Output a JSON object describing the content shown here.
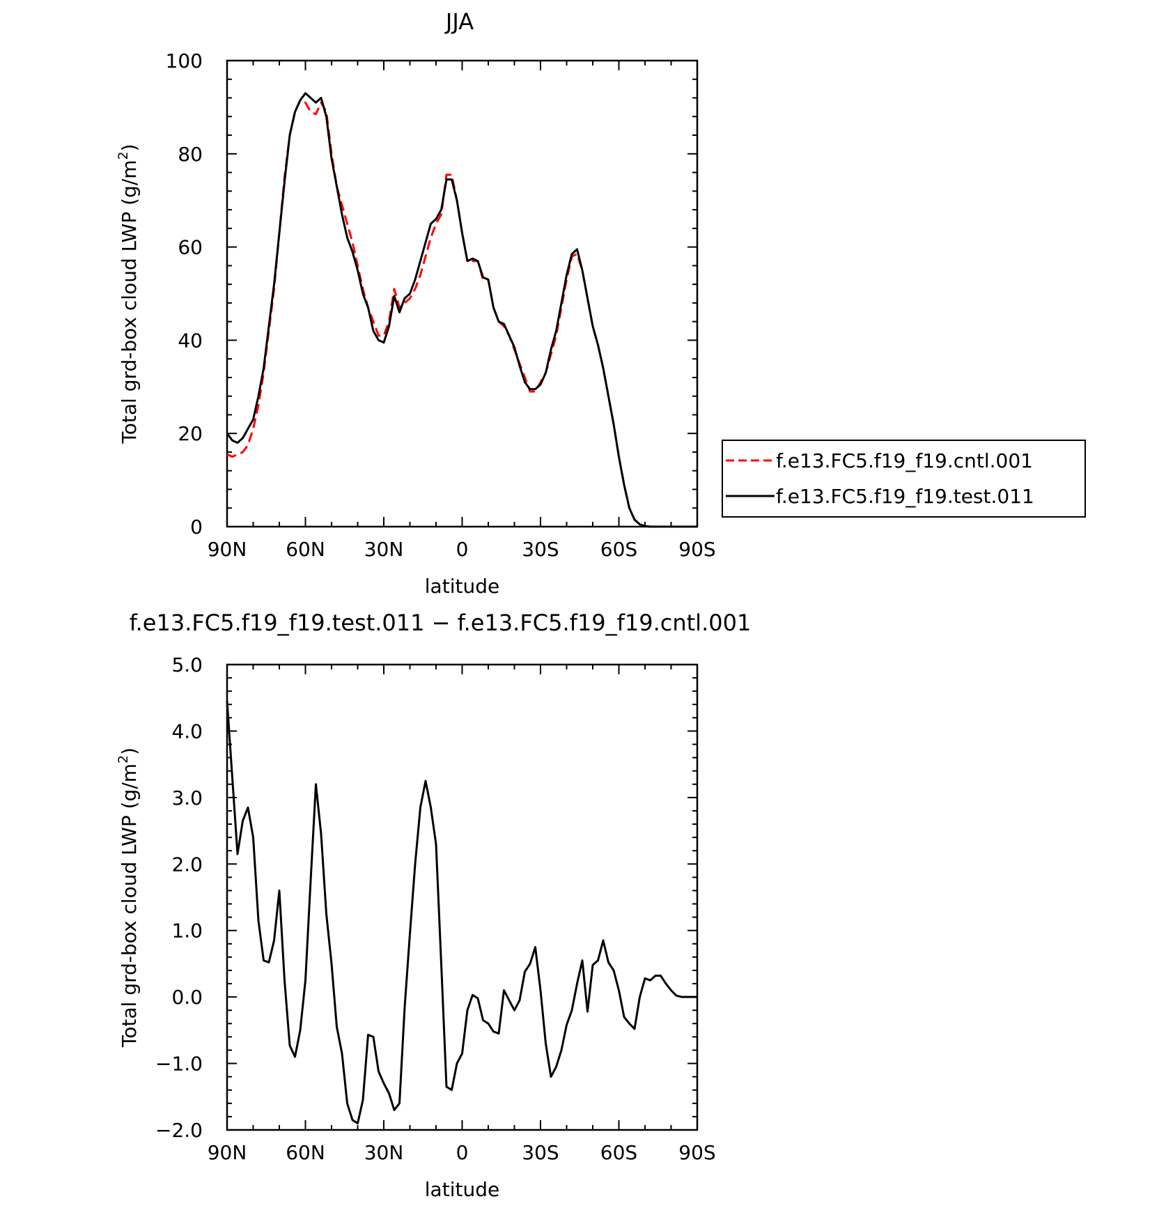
{
  "chart_data": [
    {
      "type": "line",
      "title": "JJA",
      "xlabel": "latitude",
      "ylabel": "Total grd-box cloud LWP (g/m2)",
      "ylabel_main": "Total grd-box cloud LWP (g/m",
      "ylabel_sup": "2",
      "ylabel_end": ")",
      "x_tick_labels": [
        "90N",
        "60N",
        "30N",
        "0",
        "30S",
        "60S",
        "90S"
      ],
      "x_ticks": [
        -90,
        -60,
        -30,
        0,
        30,
        60,
        90
      ],
      "xlim": [
        -90,
        90
      ],
      "ylim": [
        0,
        100
      ],
      "y_ticks": [
        0,
        20,
        40,
        60,
        80,
        100
      ],
      "y_tick_labels": [
        "0",
        "20",
        "40",
        "60",
        "80",
        "100"
      ],
      "legend": "right",
      "series": [
        {
          "name": "f.e13.FC5.f19_f19.cntl.001",
          "color": "#ff0000",
          "dash": "dashed",
          "x": [
            -90,
            -88,
            -86,
            -84,
            -82,
            -80,
            -78,
            -76,
            -74,
            -72,
            -70,
            -68,
            -66,
            -64,
            -62,
            -60,
            -58,
            -56,
            -54,
            -52,
            -50,
            -48,
            -46,
            -44,
            -42,
            -40,
            -38,
            -36,
            -34,
            -32,
            -30,
            -28,
            -26,
            -24,
            -22,
            -20,
            -18,
            -16,
            -14,
            -12,
            -10,
            -8,
            -6,
            -4,
            -2,
            0,
            2,
            4,
            6,
            8,
            10,
            12,
            14,
            16,
            18,
            20,
            22,
            24,
            26,
            28,
            30,
            32,
            34,
            36,
            38,
            40,
            42,
            44,
            46,
            48,
            50,
            52,
            54,
            56,
            58,
            60,
            62,
            64,
            66,
            68,
            70,
            72,
            74,
            76,
            78,
            80,
            82,
            84,
            86,
            88,
            90
          ],
          "values": [
            15.5,
            15,
            15.5,
            16,
            17.5,
            21,
            26,
            33,
            42,
            51,
            63,
            75,
            84,
            89,
            91.5,
            91,
            89,
            88.5,
            91,
            89,
            80,
            73,
            69,
            65,
            61,
            56,
            51,
            47,
            44,
            41,
            41,
            44,
            51,
            47,
            48,
            49,
            51,
            54,
            58,
            62,
            65,
            67,
            75.5,
            75.5,
            70,
            63,
            57,
            57,
            57,
            53,
            53,
            47,
            44,
            43,
            41,
            38,
            35,
            32,
            29,
            29,
            31,
            33,
            37,
            41,
            47,
            53,
            58,
            58.5,
            55,
            49,
            43,
            39,
            34,
            28,
            22,
            15,
            9,
            4,
            1.5,
            0.5,
            0.1,
            0,
            0,
            0,
            0,
            0,
            0,
            0,
            0,
            0,
            0
          ]
        },
        {
          "name": "f.e13.FC5.f19_f19.test.011",
          "color": "#000000",
          "dash": "solid",
          "x": [
            -90,
            -88,
            -86,
            -84,
            -82,
            -80,
            -78,
            -76,
            -74,
            -72,
            -70,
            -68,
            -66,
            -64,
            -62,
            -60,
            -58,
            -56,
            -54,
            -52,
            -50,
            -48,
            -46,
            -44,
            -42,
            -40,
            -38,
            -36,
            -34,
            -32,
            -30,
            -28,
            -26,
            -24,
            -22,
            -20,
            -18,
            -16,
            -14,
            -12,
            -10,
            -8,
            -6,
            -4,
            -2,
            0,
            2,
            4,
            6,
            8,
            10,
            12,
            14,
            16,
            18,
            20,
            22,
            24,
            26,
            28,
            30,
            32,
            34,
            36,
            38,
            40,
            42,
            44,
            46,
            48,
            50,
            52,
            54,
            56,
            58,
            60,
            62,
            64,
            66,
            68,
            70,
            72,
            74,
            76,
            78,
            80,
            82,
            84,
            86,
            88,
            90
          ],
          "values": [
            20,
            18.5,
            18,
            19,
            21,
            23,
            28,
            34,
            43,
            52,
            63,
            74,
            84,
            89,
            91.5,
            93,
            92,
            91,
            92,
            88,
            79,
            73,
            67,
            62,
            59,
            55,
            50,
            47,
            42,
            40,
            39.5,
            43,
            49.5,
            46,
            49,
            50,
            53,
            57,
            61,
            65,
            66,
            68,
            74.5,
            74.5,
            70,
            63,
            57,
            57.5,
            57,
            53.5,
            53,
            47,
            44,
            43.5,
            41,
            38.5,
            34.5,
            31,
            29.5,
            29.5,
            30.5,
            33,
            38,
            42,
            48,
            54,
            58.5,
            59.5,
            55,
            49,
            43,
            39,
            34,
            28,
            22,
            15,
            9,
            4,
            1.5,
            0.5,
            0.1,
            0,
            0,
            0,
            0,
            0,
            0,
            0,
            0,
            0,
            0
          ]
        }
      ]
    },
    {
      "type": "line",
      "title": "f.e13.FC5.f19_f19.test.011 − f.e13.FC5.f19_f19.cntl.001",
      "xlabel": "latitude",
      "ylabel": "Total grd-box cloud LWP (g/m2)",
      "ylabel_main": "Total grd-box cloud LWP (g/m",
      "ylabel_sup": "2",
      "ylabel_end": ")",
      "x_tick_labels": [
        "90N",
        "60N",
        "30N",
        "0",
        "30S",
        "60S",
        "90S"
      ],
      "x_ticks": [
        -90,
        -60,
        -30,
        0,
        30,
        60,
        90
      ],
      "xlim": [
        -90,
        90
      ],
      "ylim": [
        -2.0,
        5.0
      ],
      "y_ticks": [
        -2,
        -1,
        0,
        1,
        2,
        3,
        4,
        5
      ],
      "y_tick_labels": [
        "−2.0",
        "−1.0",
        "0.0",
        "1.0",
        "2.0",
        "3.0",
        "4.0",
        "5.0"
      ],
      "series": [
        {
          "name": "",
          "color": "#000000",
          "dash": "solid",
          "x": [
            -90,
            -88,
            -86,
            -84,
            -82,
            -80,
            -78,
            -76,
            -74,
            -72,
            -70,
            -68,
            -66,
            -64,
            -62,
            -60,
            -58,
            -56,
            -54,
            -52,
            -50,
            -48,
            -46,
            -44,
            -42,
            -40,
            -38,
            -36,
            -34,
            -32,
            -30,
            -28,
            -26,
            -24,
            -22,
            -20,
            -18,
            -16,
            -14,
            -12,
            -10,
            -8,
            -6,
            -4,
            -2,
            0,
            2,
            4,
            6,
            8,
            10,
            12,
            14,
            16,
            18,
            20,
            22,
            24,
            26,
            28,
            30,
            32,
            34,
            36,
            38,
            40,
            42,
            44,
            46,
            48,
            50,
            52,
            54,
            56,
            58,
            60,
            62,
            64,
            66,
            68,
            70,
            72,
            74,
            76,
            78,
            80,
            82,
            84,
            86,
            88,
            90
          ],
          "values": [
            4.45,
            3.3,
            2.15,
            2.65,
            2.85,
            2.4,
            1.15,
            0.55,
            0.52,
            0.85,
            1.6,
            0.25,
            -0.73,
            -0.9,
            -0.5,
            0.25,
            1.75,
            3.2,
            2.45,
            1.25,
            0.5,
            -0.45,
            -0.85,
            -1.6,
            -1.85,
            -1.9,
            -1.55,
            -0.57,
            -0.6,
            -1.12,
            -1.3,
            -1.45,
            -1.7,
            -1.6,
            -0.15,
            0.95,
            2.0,
            2.85,
            3.25,
            2.85,
            2.3,
            0.5,
            -1.35,
            -1.4,
            -1.0,
            -0.85,
            -0.2,
            0.03,
            -0.02,
            -0.35,
            -0.4,
            -0.52,
            -0.55,
            0.1,
            -0.05,
            -0.2,
            -0.05,
            0.38,
            0.5,
            0.75,
            0.1,
            -0.7,
            -1.2,
            -1.05,
            -0.8,
            -0.42,
            -0.2,
            0.2,
            0.55,
            -0.22,
            0.48,
            0.55,
            0.85,
            0.52,
            0.4,
            0.1,
            -0.3,
            -0.4,
            -0.48,
            0.0,
            0.28,
            0.25,
            0.32,
            0.32,
            0.2,
            0.1,
            0.02,
            0.0,
            0.0,
            0.0,
            0.0
          ]
        }
      ]
    }
  ]
}
